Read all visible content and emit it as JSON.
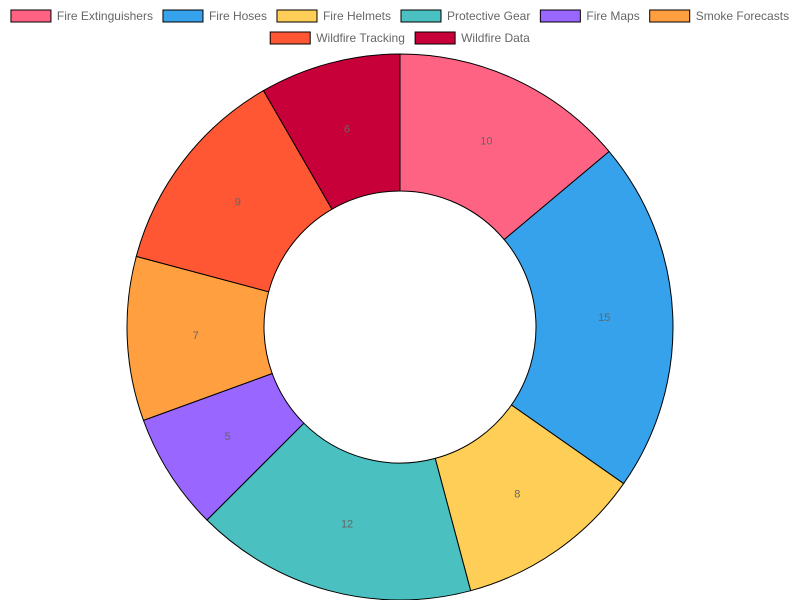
{
  "chart_data": {
    "type": "pie",
    "variant": "doughnut",
    "legend_position": "top",
    "grid": false,
    "categories": [
      "Fire Extinguishers",
      "Fire Hoses",
      "Fire Helmets",
      "Protective Gear",
      "Fire Maps",
      "Smoke Forecasts",
      "Wildfire Tracking",
      "Wildfire Data"
    ],
    "values": [
      10,
      15,
      8,
      12,
      5,
      7,
      9,
      6
    ],
    "colors": [
      "#ff6384",
      "#36a2eb",
      "#ffce56",
      "#4bc0c0",
      "#9966ff",
      "#ff9f40",
      "#ff5733",
      "#c70039"
    ],
    "border_color": "#000000",
    "show_value_labels": true
  }
}
